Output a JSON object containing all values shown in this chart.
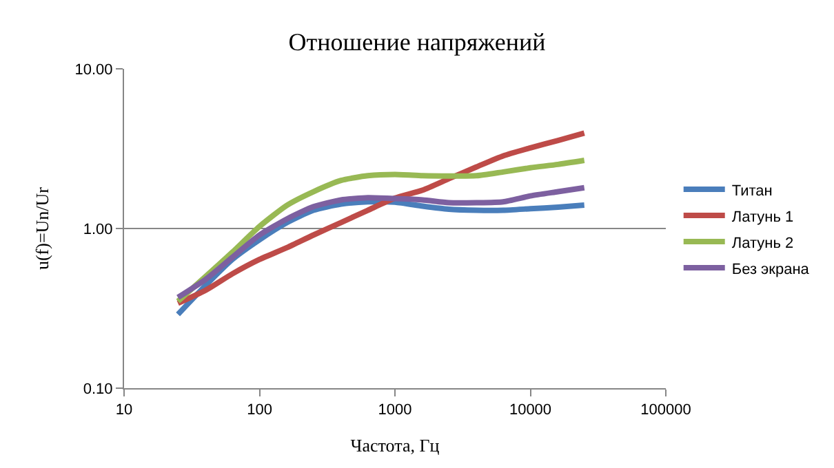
{
  "chart_data": {
    "type": "line",
    "title": "Отношение напряжений",
    "xlabel": "Частота, Гц",
    "ylabel": "u(f)=Un/Ur",
    "log": "xy",
    "grid": "y",
    "legend": "right",
    "marker": "none",
    "line_style": "solid",
    "x": [
      25,
      40,
      63,
      100,
      160,
      250,
      400,
      630,
      1000,
      1600,
      2500,
      4000,
      6300,
      10000,
      16000,
      25000
    ],
    "xlim": [
      10,
      100000
    ],
    "xticks": [
      10,
      100,
      1000,
      10000,
      100000
    ],
    "ylim": [
      0.1,
      10
    ],
    "yticks": [
      {
        "value": 0.1,
        "label": "0.10"
      },
      {
        "value": 1,
        "label": "1.00"
      },
      {
        "value": 10,
        "label": "10.00"
      }
    ],
    "series": [
      {
        "name": "Титан",
        "color": "#4a7ebb",
        "values": [
          0.29,
          0.44,
          0.64,
          0.85,
          1.09,
          1.3,
          1.42,
          1.47,
          1.46,
          1.38,
          1.32,
          1.3,
          1.3,
          1.33,
          1.36,
          1.4
        ]
      },
      {
        "name": "Латунь 1",
        "color": "#be4b48",
        "values": [
          0.34,
          0.41,
          0.52,
          0.64,
          0.76,
          0.91,
          1.09,
          1.3,
          1.55,
          1.74,
          2.05,
          2.43,
          2.85,
          3.2,
          3.56,
          3.96
        ]
      },
      {
        "name": "Латунь 2",
        "color": "#98b954",
        "values": [
          0.35,
          0.5,
          0.71,
          1.03,
          1.4,
          1.7,
          2.0,
          2.14,
          2.18,
          2.14,
          2.13,
          2.14,
          2.26,
          2.4,
          2.52,
          2.67
        ]
      },
      {
        "name": "Без экрана",
        "color": "#7d60a0",
        "values": [
          0.37,
          0.48,
          0.66,
          0.91,
          1.15,
          1.37,
          1.51,
          1.56,
          1.54,
          1.51,
          1.45,
          1.45,
          1.47,
          1.6,
          1.7,
          1.8
        ]
      }
    ]
  }
}
